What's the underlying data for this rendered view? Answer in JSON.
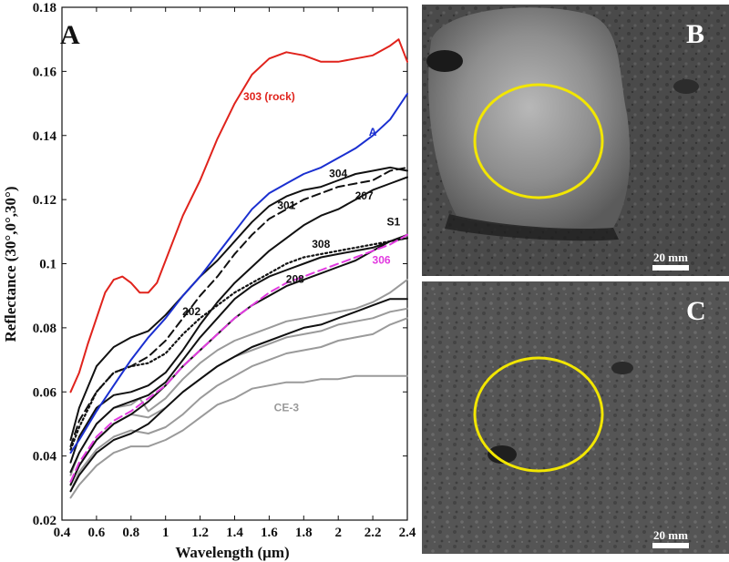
{
  "chart_data": {
    "type": "line",
    "panel_label": "A",
    "xlabel": "Wavelength (μm)",
    "ylabel": "Reflectance (30°,0°,30°)",
    "xlim": [
      0.4,
      2.4
    ],
    "ylim": [
      0.02,
      0.18
    ],
    "xticks": [
      "0.4",
      "0.6",
      "0.8",
      "1",
      "1.2",
      "1.4",
      "1.6",
      "1.8",
      "2",
      "2.2",
      "2.4"
    ],
    "yticks": [
      "0.02",
      "0.04",
      "0.06",
      "0.08",
      "0.1",
      "0.12",
      "0.14",
      "0.16",
      "0.18"
    ],
    "grid": false,
    "series": [
      {
        "name": "303 (rock)",
        "color": "#e0231c",
        "style": "solid",
        "label_at": [
          1.6,
          0.151
        ],
        "x": [
          0.45,
          0.5,
          0.55,
          0.6,
          0.65,
          0.7,
          0.75,
          0.8,
          0.85,
          0.9,
          0.95,
          1.0,
          1.1,
          1.2,
          1.3,
          1.4,
          1.5,
          1.6,
          1.7,
          1.8,
          1.9,
          2.0,
          2.1,
          2.2,
          2.3,
          2.35,
          2.4
        ],
        "y": [
          0.06,
          0.066,
          0.075,
          0.083,
          0.091,
          0.095,
          0.096,
          0.094,
          0.091,
          0.091,
          0.094,
          0.101,
          0.115,
          0.126,
          0.139,
          0.15,
          0.159,
          0.164,
          0.166,
          0.165,
          0.163,
          0.163,
          0.164,
          0.165,
          0.168,
          0.17,
          0.163
        ]
      },
      {
        "name": "A",
        "color": "#1a2fd0",
        "style": "solid",
        "label_at": [
          2.2,
          0.14
        ],
        "x": [
          0.45,
          0.5,
          0.6,
          0.7,
          0.8,
          0.9,
          1.0,
          1.1,
          1.2,
          1.3,
          1.4,
          1.5,
          1.6,
          1.7,
          1.8,
          1.9,
          2.0,
          2.1,
          2.2,
          2.3,
          2.4
        ],
        "y": [
          0.041,
          0.045,
          0.054,
          0.062,
          0.07,
          0.077,
          0.083,
          0.09,
          0.096,
          0.103,
          0.11,
          0.117,
          0.122,
          0.125,
          0.128,
          0.13,
          0.133,
          0.136,
          0.14,
          0.145,
          0.153
        ]
      },
      {
        "name": "304",
        "color": "#111111",
        "style": "solid",
        "label_at": [
          2.0,
          0.127
        ],
        "x": [
          0.45,
          0.5,
          0.6,
          0.7,
          0.8,
          0.9,
          1.0,
          1.1,
          1.2,
          1.3,
          1.4,
          1.5,
          1.6,
          1.7,
          1.8,
          1.9,
          2.0,
          2.1,
          2.2,
          2.3,
          2.4
        ],
        "y": [
          0.045,
          0.055,
          0.068,
          0.074,
          0.077,
          0.079,
          0.084,
          0.09,
          0.096,
          0.101,
          0.107,
          0.113,
          0.118,
          0.121,
          0.123,
          0.124,
          0.126,
          0.128,
          0.129,
          0.13,
          0.129
        ]
      },
      {
        "name": "301",
        "color": "#111111",
        "style": "dashed",
        "label_at": [
          1.7,
          0.117
        ],
        "x": [
          0.45,
          0.5,
          0.6,
          0.7,
          0.8,
          0.9,
          1.0,
          1.1,
          1.2,
          1.3,
          1.4,
          1.5,
          1.6,
          1.7,
          1.8,
          1.9,
          2.0,
          2.1,
          2.2,
          2.3,
          2.4
        ],
        "y": [
          0.043,
          0.051,
          0.06,
          0.066,
          0.068,
          0.071,
          0.076,
          0.083,
          0.09,
          0.096,
          0.103,
          0.109,
          0.114,
          0.117,
          0.12,
          0.122,
          0.124,
          0.125,
          0.126,
          0.129,
          0.13
        ]
      },
      {
        "name": "207",
        "color": "#111111",
        "style": "solid",
        "label_at": [
          2.15,
          0.12
        ],
        "x": [
          0.45,
          0.5,
          0.6,
          0.7,
          0.8,
          0.9,
          1.0,
          1.1,
          1.2,
          1.3,
          1.4,
          1.5,
          1.6,
          1.7,
          1.8,
          1.9,
          2.0,
          2.1,
          2.2,
          2.3,
          2.4
        ],
        "y": [
          0.038,
          0.046,
          0.055,
          0.059,
          0.06,
          0.062,
          0.066,
          0.073,
          0.081,
          0.088,
          0.094,
          0.099,
          0.104,
          0.108,
          0.112,
          0.115,
          0.117,
          0.12,
          0.123,
          0.125,
          0.127
        ]
      },
      {
        "name": "308",
        "color": "#111111",
        "style": "dotted",
        "label_at": [
          1.9,
          0.105
        ],
        "x": [
          0.45,
          0.5,
          0.6,
          0.7,
          0.8,
          0.9,
          1.0,
          1.1,
          1.2,
          1.3,
          1.4,
          1.5,
          1.6,
          1.7,
          1.8,
          1.9,
          2.0,
          2.1,
          2.2,
          2.3,
          2.4
        ],
        "y": [
          0.042,
          0.049,
          0.06,
          0.066,
          0.068,
          0.069,
          0.072,
          0.078,
          0.083,
          0.087,
          0.091,
          0.094,
          0.097,
          0.1,
          0.102,
          0.103,
          0.104,
          0.105,
          0.106,
          0.107,
          0.108
        ]
      },
      {
        "name": "S1",
        "color": "#111111",
        "style": "solid",
        "label_at": [
          2.32,
          0.112
        ],
        "x": [
          0.45,
          0.5,
          0.6,
          0.7,
          0.8,
          0.9,
          1.0,
          1.1,
          1.2,
          1.3,
          1.4,
          1.5,
          1.6,
          1.7,
          1.8,
          1.9,
          2.0,
          2.1,
          2.2,
          2.3,
          2.4
        ],
        "y": [
          0.035,
          0.041,
          0.05,
          0.055,
          0.057,
          0.059,
          0.063,
          0.07,
          0.077,
          0.083,
          0.089,
          0.093,
          0.096,
          0.098,
          0.1,
          0.102,
          0.103,
          0.104,
          0.105,
          0.107,
          0.108
        ]
      },
      {
        "name": "208",
        "color": "#111111",
        "style": "solid",
        "label_at": [
          1.75,
          0.094
        ],
        "x": [
          0.45,
          0.5,
          0.6,
          0.7,
          0.8,
          0.9,
          1.0,
          1.1,
          1.2,
          1.3,
          1.4,
          1.5,
          1.6,
          1.7,
          1.8,
          1.9,
          2.0,
          2.1,
          2.2,
          2.3,
          2.4
        ],
        "y": [
          0.031,
          0.037,
          0.045,
          0.05,
          0.053,
          0.057,
          0.062,
          0.068,
          0.073,
          0.078,
          0.083,
          0.087,
          0.09,
          0.093,
          0.095,
          0.097,
          0.099,
          0.101,
          0.104,
          0.107,
          0.109
        ]
      },
      {
        "name": "306",
        "color": "#e23ae0",
        "style": "dashed",
        "label_at": [
          2.25,
          0.1
        ],
        "x": [
          0.45,
          0.5,
          0.6,
          0.7,
          0.8,
          0.9,
          1.0,
          1.1,
          1.2,
          1.3,
          1.4,
          1.5,
          1.6,
          1.7,
          1.8,
          1.9,
          2.0,
          2.1,
          2.2,
          2.3,
          2.4
        ],
        "y": [
          0.032,
          0.038,
          0.046,
          0.051,
          0.054,
          0.058,
          0.062,
          0.068,
          0.073,
          0.078,
          0.083,
          0.087,
          0.091,
          0.094,
          0.096,
          0.098,
          0.1,
          0.102,
          0.104,
          0.106,
          0.109
        ]
      },
      {
        "name": "202",
        "color": "#111111",
        "style": "solid",
        "label_at": [
          1.15,
          0.084
        ],
        "x": [
          0.45,
          0.5,
          0.6,
          0.7,
          0.8,
          0.9,
          1.0,
          1.1,
          1.2,
          1.3,
          1.4,
          1.5,
          1.6,
          1.7,
          1.8,
          1.9,
          2.0,
          2.1,
          2.2,
          2.3,
          2.4
        ],
        "y": [
          0.029,
          0.034,
          0.041,
          0.045,
          0.047,
          0.05,
          0.055,
          0.06,
          0.064,
          0.068,
          0.071,
          0.074,
          0.076,
          0.078,
          0.08,
          0.081,
          0.083,
          0.085,
          0.087,
          0.089,
          0.089
        ]
      },
      {
        "name": "CE-3",
        "color": "#9a9a9a",
        "style": "solid",
        "label_at": [
          1.7,
          0.054
        ],
        "x": [
          0.45,
          0.5,
          0.6,
          0.7,
          0.8,
          0.9,
          1.0,
          1.1,
          1.2,
          1.3,
          1.4,
          1.5,
          1.6,
          1.7,
          1.8,
          1.9,
          2.0,
          2.1,
          2.2,
          2.3,
          2.4
        ],
        "y": [
          0.027,
          0.031,
          0.037,
          0.041,
          0.043,
          0.043,
          0.045,
          0.048,
          0.052,
          0.056,
          0.058,
          0.061,
          0.062,
          0.063,
          0.063,
          0.064,
          0.064,
          0.065,
          0.065,
          0.065,
          0.065
        ]
      },
      {
        "name": "",
        "color": "#9a9a9a",
        "style": "solid",
        "label_at": null,
        "x": [
          0.45,
          0.5,
          0.6,
          0.7,
          0.8,
          0.9,
          1.0,
          1.1,
          1.2,
          1.3,
          1.4,
          1.5,
          1.6,
          1.7,
          1.8,
          1.9,
          2.0,
          2.1,
          2.2,
          2.3,
          2.4
        ],
        "y": [
          0.029,
          0.035,
          0.042,
          0.046,
          0.048,
          0.047,
          0.049,
          0.053,
          0.058,
          0.062,
          0.065,
          0.068,
          0.07,
          0.072,
          0.073,
          0.074,
          0.076,
          0.077,
          0.078,
          0.081,
          0.083
        ]
      },
      {
        "name": "",
        "color": "#9a9a9a",
        "style": "solid",
        "label_at": null,
        "x": [
          0.45,
          0.5,
          0.6,
          0.7,
          0.8,
          0.9,
          1.0,
          1.1,
          1.2,
          1.3,
          1.4,
          1.5,
          1.6,
          1.7,
          1.8,
          1.9,
          2.0,
          2.1,
          2.2,
          2.3,
          2.4
        ],
        "y": [
          0.031,
          0.037,
          0.045,
          0.05,
          0.053,
          0.052,
          0.055,
          0.06,
          0.064,
          0.068,
          0.071,
          0.073,
          0.075,
          0.077,
          0.078,
          0.079,
          0.081,
          0.082,
          0.083,
          0.085,
          0.086
        ]
      },
      {
        "name": "",
        "color": "#9a9a9a",
        "style": "solid",
        "label_at": null,
        "x": [
          0.45,
          0.5,
          0.6,
          0.7,
          0.8,
          0.85,
          0.9,
          1.0,
          1.1,
          1.2,
          1.3,
          1.4,
          1.5,
          1.6,
          1.7,
          1.8,
          1.9,
          2.0,
          2.1,
          2.2,
          2.3,
          2.4
        ],
        "y": [
          0.034,
          0.041,
          0.05,
          0.055,
          0.056,
          0.058,
          0.054,
          0.058,
          0.064,
          0.069,
          0.073,
          0.076,
          0.078,
          0.08,
          0.082,
          0.083,
          0.084,
          0.085,
          0.086,
          0.088,
          0.091,
          0.095
        ]
      }
    ]
  },
  "photos": [
    {
      "label": "B",
      "scale_text": "20 mm"
    },
    {
      "label": "C",
      "scale_text": "20 mm"
    }
  ],
  "colors": {
    "ring": "#f2e600",
    "panel_letter_photo": "#ffffff"
  }
}
